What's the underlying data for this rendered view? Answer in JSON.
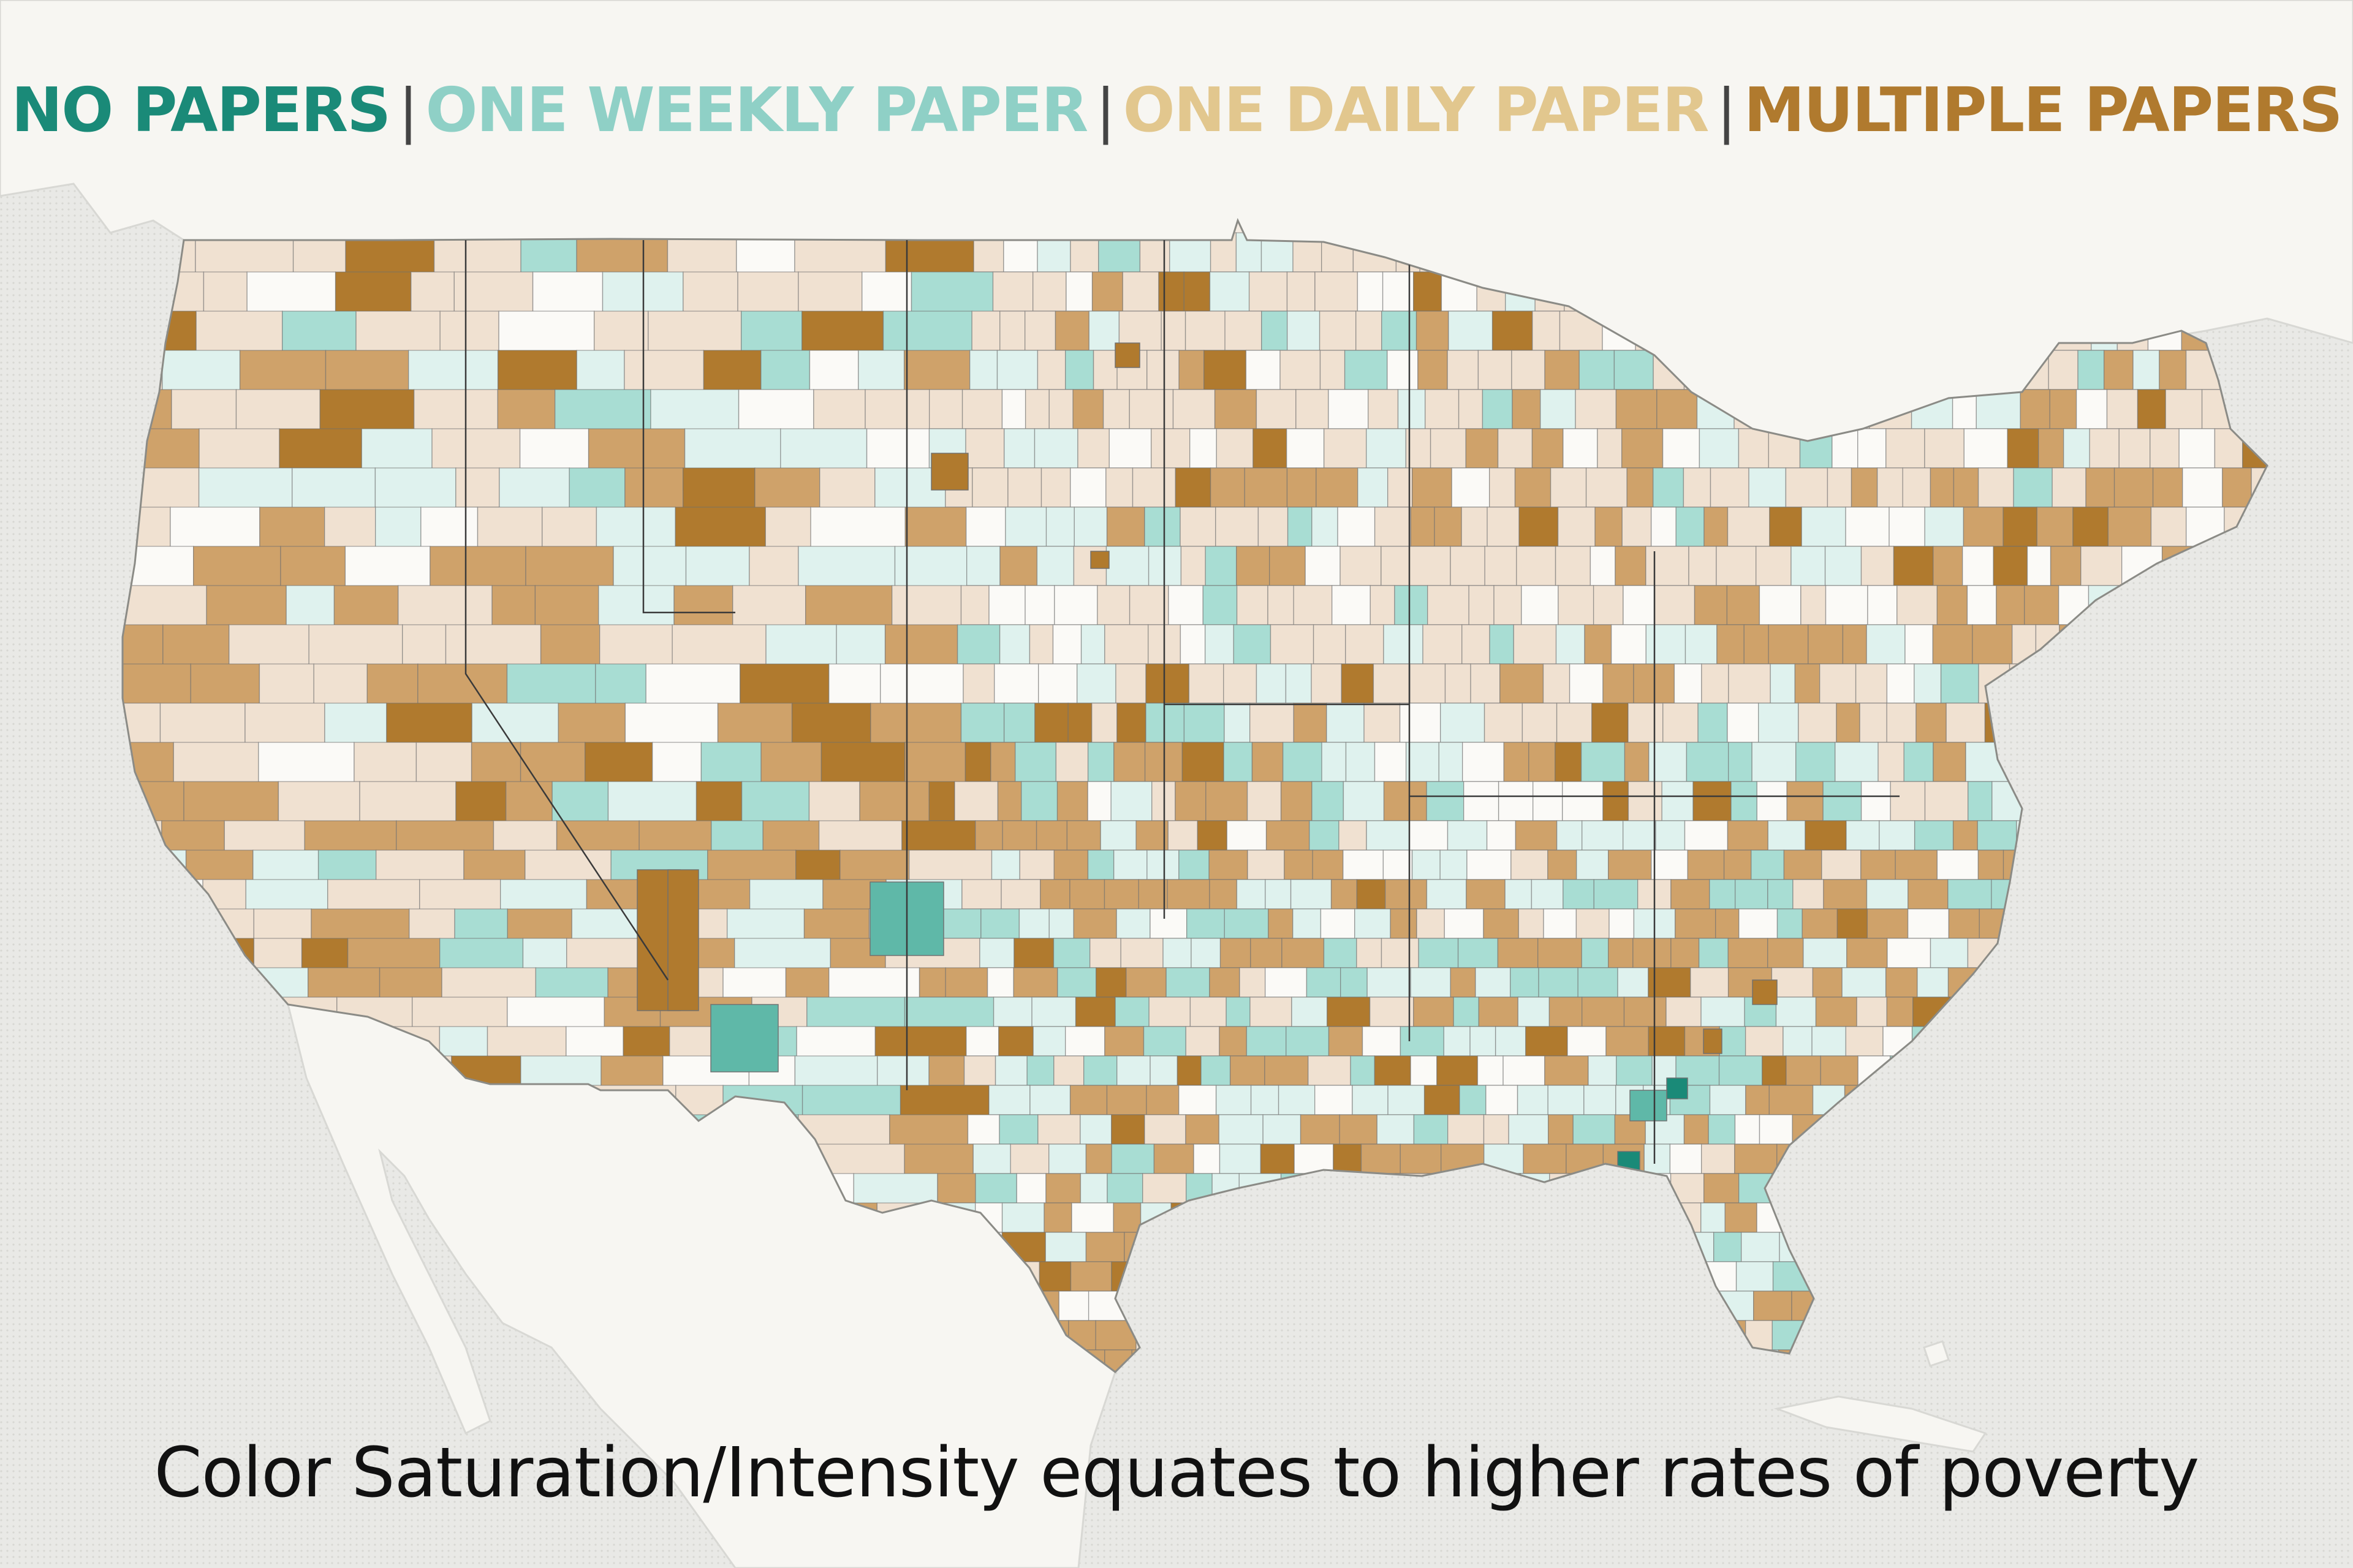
{
  "legend": {
    "items": [
      {
        "label": "NO PAPERS",
        "color": "#1a8a78"
      },
      {
        "label": "ONE WEEKLY PAPER",
        "color": "#8fd0c6"
      },
      {
        "label": "ONE DAILY PAPER",
        "color": "#e2c78e"
      },
      {
        "label": "MULTIPLE PAPERS",
        "color": "#b07a2e"
      }
    ],
    "separator": "|"
  },
  "caption": "Color Saturation/Intensity equates to higher rates of poverty",
  "map": {
    "region": "contiguous United States",
    "unit": "county",
    "palette": {
      "multiple_papers_high": "#b07a2e",
      "multiple_papers_mid": "#cfa26a",
      "multiple_papers_low": "#f0e1d1",
      "one_daily_paper_mid": "#e2c78e",
      "one_weekly_paper_high": "#5fb8a8",
      "one_weekly_paper_mid": "#a8ddd3",
      "one_weekly_paper_low": "#dff2ee",
      "no_papers_high": "#1a8a78",
      "low_poverty_blank": "#fbfaf7",
      "county_border": "#6f6f6f",
      "land_background": "#f7f6f2",
      "water_background": "#e9e9e6"
    }
  }
}
